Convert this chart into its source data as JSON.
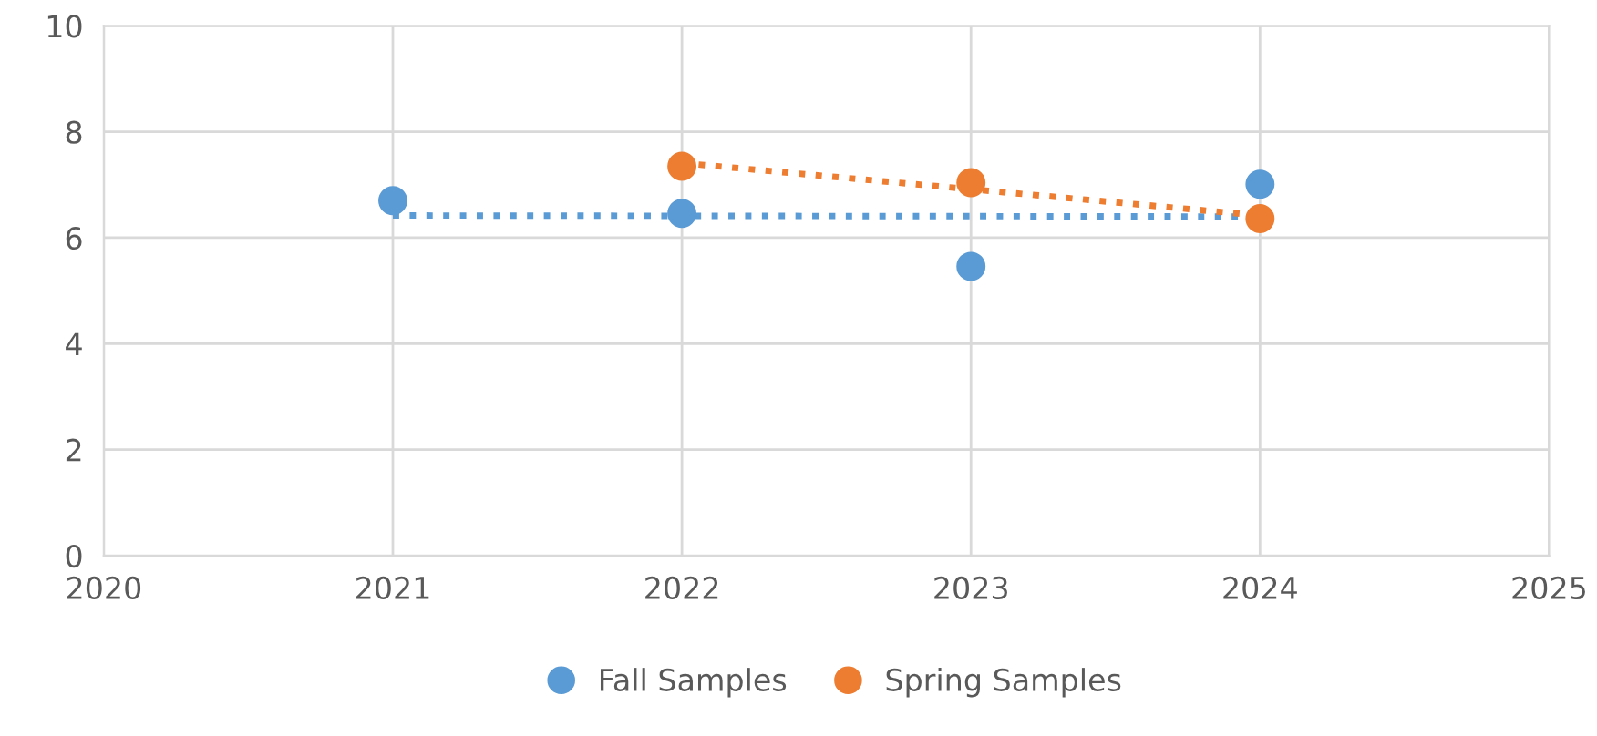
{
  "chart_data": {
    "type": "scatter",
    "marker": "circle",
    "series": [
      {
        "name": "Fall Samples",
        "color": "#5b9bd5",
        "x": [
          2021,
          2022,
          2023,
          2024
        ],
        "values": [
          6.7,
          6.46,
          5.46,
          7.01
        ]
      },
      {
        "name": "Spring Samples",
        "color": "#ed7d31",
        "x": [
          2022,
          2023,
          2024
        ],
        "values": [
          7.35,
          7.04,
          6.36
        ]
      },
      {
        "type": "line",
        "line_style": "dotted",
        "marker": "none",
        "color": "#5b9bd5",
        "x": [
          2021,
          2024
        ],
        "values": [
          6.42,
          6.4
        ]
      },
      {
        "type": "line",
        "line_style": "dotted",
        "marker": "none",
        "color": "#ed7d31",
        "x": [
          2022,
          2024
        ],
        "values": [
          7.41,
          6.42
        ]
      }
    ],
    "xlim": [
      2020,
      2025
    ],
    "xticks": [
      2020,
      2021,
      2022,
      2023,
      2024,
      2025
    ],
    "ylim": [
      0,
      10
    ],
    "yticks": [
      0,
      2,
      4,
      6,
      8,
      10
    ],
    "grid": true,
    "legend": "bottom"
  }
}
